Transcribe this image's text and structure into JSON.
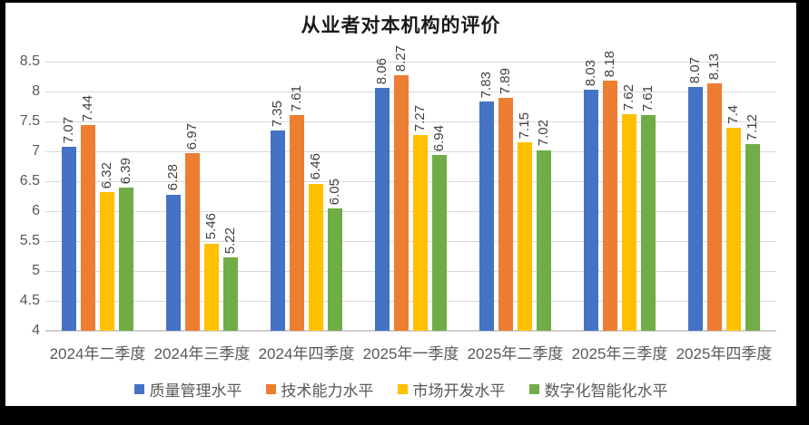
{
  "page": {
    "background_color": "#000000",
    "chart_background_color": "#ffffff"
  },
  "chart_data": {
    "type": "bar",
    "title": "从业者对本机构的评价",
    "categories": [
      "2024年二季度",
      "2024年三季度",
      "2024年四季度",
      "2025年一季度",
      "2025年二季度",
      "2025年三季度",
      "2025年四季度"
    ],
    "series": [
      {
        "name": "质量管理水平",
        "color": "#4472C4",
        "values": [
          7.07,
          6.28,
          7.35,
          8.06,
          7.83,
          8.03,
          8.07
        ],
        "labels": [
          "7.07",
          "6.28",
          "7.35",
          "8.06",
          "7.83",
          "8.03",
          "8.07"
        ]
      },
      {
        "name": "技术能力水平",
        "color": "#ED7D31",
        "values": [
          7.44,
          6.97,
          7.61,
          8.27,
          7.89,
          8.18,
          8.13
        ],
        "labels": [
          "7.44",
          "6.97",
          "7.61",
          "8.27",
          "7.89",
          "8.18",
          "8.13"
        ]
      },
      {
        "name": "市场开发水平",
        "color": "#FFC000",
        "values": [
          6.32,
          5.46,
          6.46,
          7.27,
          7.15,
          7.62,
          7.4
        ],
        "labels": [
          "6.32",
          "5.46",
          "6.46",
          "7.27",
          "7.15",
          "7.62",
          "7.4"
        ]
      },
      {
        "name": "数字化智能化水平",
        "color": "#70AD47",
        "values": [
          6.39,
          5.22,
          6.05,
          6.94,
          7.02,
          7.61,
          7.12
        ],
        "labels": [
          "6.39",
          "5.22",
          "6.05",
          "6.94",
          "7.02",
          "7.61",
          "7.12"
        ]
      }
    ],
    "xlabel": "",
    "ylabel": "",
    "ylim": [
      4,
      8.5
    ],
    "yticks": [
      "8.5",
      "8",
      "7.5",
      "7",
      "6.5",
      "6",
      "5.5",
      "5",
      "4.5",
      "4"
    ],
    "grid": true,
    "grid_color": "#D9D9D9",
    "axis_line_color": "#CFCDCD",
    "axis_label_color": "#595959",
    "data_label_color": "#404040",
    "data_labels_rotated": true,
    "legend_position": "bottom"
  }
}
